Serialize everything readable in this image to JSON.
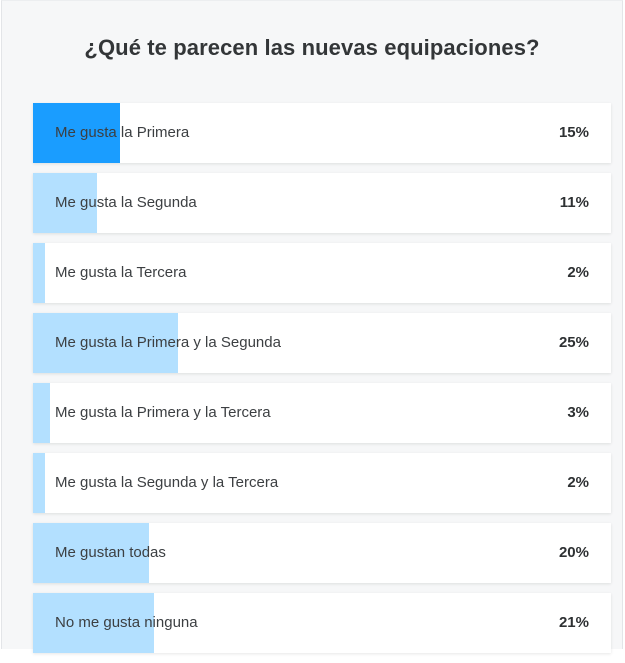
{
  "poll": {
    "title": "¿Qué te parecen las nuevas equipaciones?",
    "selected_index": 0,
    "options": [
      {
        "label": "Me gusta la Primera",
        "percent_text": "15%",
        "percent": 15
      },
      {
        "label": "Me gusta la Segunda",
        "percent_text": "11%",
        "percent": 11
      },
      {
        "label": "Me gusta la Tercera",
        "percent_text": "2%",
        "percent": 2
      },
      {
        "label": "Me gusta la Primera y la Segunda",
        "percent_text": "25%",
        "percent": 25
      },
      {
        "label": "Me gusta la Primera y la Tercera",
        "percent_text": "3%",
        "percent": 3
      },
      {
        "label": "Me gusta la Segunda y la Tercera",
        "percent_text": "2%",
        "percent": 2
      },
      {
        "label": "Me gustan todas",
        "percent_text": "20%",
        "percent": 20
      },
      {
        "label": "No me gusta ninguna",
        "percent_text": "21%",
        "percent": 21
      }
    ]
  },
  "colors": {
    "bar_selected": "#1a9dff",
    "bar_default": "#b3e0ff",
    "option_background": "#ffffff",
    "panel_background": "#f6f7f8"
  }
}
